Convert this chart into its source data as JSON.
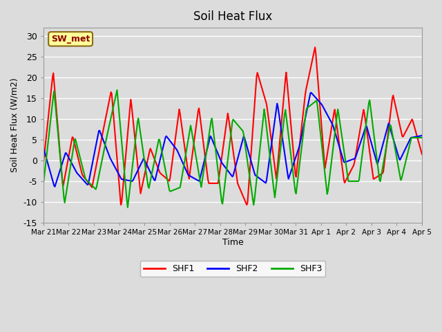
{
  "title": "Soil Heat Flux",
  "xlabel": "Time",
  "ylabel": "Soil Heat Flux (W/m2)",
  "ylim": [
    -15,
    32
  ],
  "yticks": [
    -15,
    -10,
    -5,
    0,
    5,
    10,
    15,
    20,
    25,
    30
  ],
  "x_labels": [
    "Mar 21",
    "Mar 22",
    "Mar 23",
    "Mar 24",
    "Mar 25",
    "Mar 26",
    "Mar 27",
    "Mar 28",
    "Mar 29",
    "Mar 30",
    "Mar 31",
    "Apr 1",
    "Apr 2",
    "Apr 3",
    "Apr 4",
    "Apr 5"
  ],
  "annotation_text": "SW_met",
  "annotation_color": "#8B0000",
  "annotation_bg": "#FFFF99",
  "bg_color": "#DCDCDC",
  "colors": {
    "SHF1": "#FF0000",
    "SHF2": "#0000FF",
    "SHF3": "#00AA00"
  },
  "line_width": 1.5,
  "shf1": [
    -0.5,
    21.5,
    -6.5,
    6.0,
    -3.5,
    -6.5,
    5.5,
    17.0,
    -11.5,
    15.0,
    -8.0,
    3.0,
    -3.0,
    -5.0,
    12.5,
    -4.5,
    13.0,
    -5.5,
    -5.5,
    11.5,
    -5.5,
    -11.0,
    21.5,
    13.5,
    -4.5,
    21.5,
    -4.5,
    16.5,
    27.5,
    -2.0,
    12.5,
    -5.5,
    -1.0,
    12.5,
    -4.5,
    -3.0,
    16.0,
    5.5,
    10.0,
    1.5
  ],
  "shf2": [
    3.0,
    -6.5,
    2.0,
    -3.0,
    -6.0,
    7.5,
    0.5,
    -4.5,
    -5.0,
    0.5,
    -5.0,
    6.0,
    2.5,
    -3.5,
    -5.0,
    6.0,
    -0.5,
    -4.0,
    6.0,
    -3.5,
    -5.5,
    14.0,
    -4.5,
    3.5,
    16.5,
    13.5,
    8.5,
    -0.5,
    0.5,
    8.5,
    -1.0,
    9.0,
    0.0,
    5.5,
    6.0
  ],
  "shf3": [
    -5.5,
    17.0,
    -10.5,
    5.5,
    -4.5,
    -7.0,
    5.5,
    17.0,
    -11.5,
    10.5,
    -7.0,
    5.5,
    -7.5,
    -6.5,
    8.5,
    -6.5,
    10.5,
    -11.0,
    10.0,
    7.0,
    -11.0,
    12.5,
    -9.0,
    12.5,
    -8.5,
    12.5,
    14.5,
    -8.5,
    12.5,
    -5.0,
    -5.0,
    15.0,
    -5.5,
    9.0,
    -5.0,
    5.5,
    5.5
  ]
}
